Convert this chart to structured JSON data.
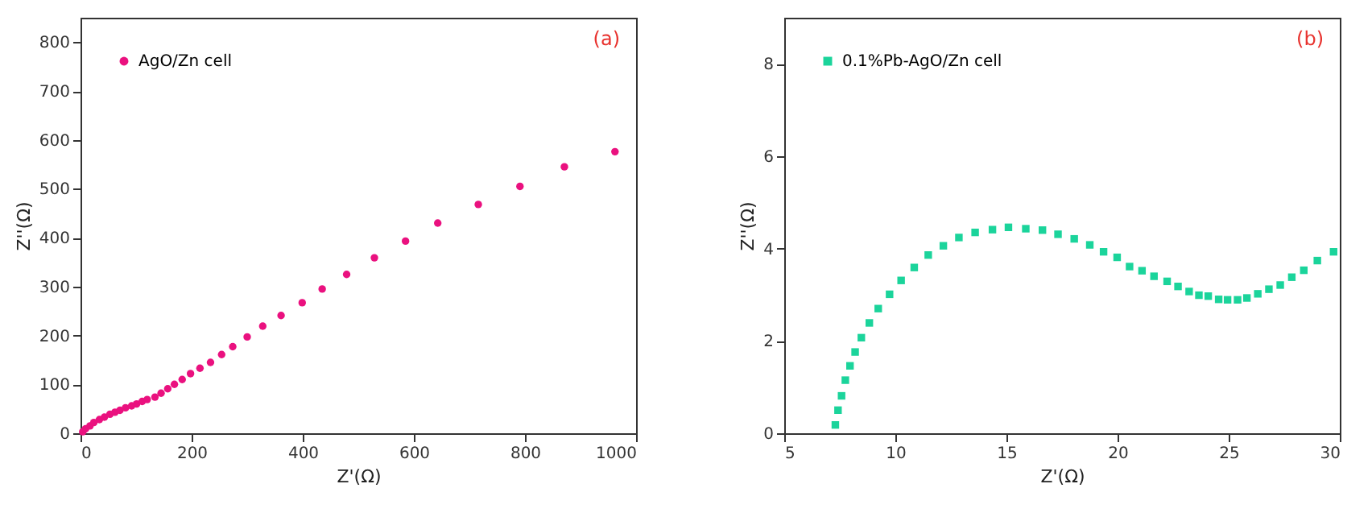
{
  "chart_data": [
    {
      "type": "scatter",
      "xlabel": "Z'(Ω)",
      "ylabel": "Z''(Ω)",
      "annotations": [
        "(a)"
      ],
      "legend": "top left",
      "marker": "circle",
      "grid": false,
      "xlim": [
        0,
        1000
      ],
      "xticks": [
        0,
        200,
        400,
        600,
        800,
        1000
      ],
      "ylim": [
        0,
        850
      ],
      "yticks": [
        0,
        100,
        200,
        300,
        400,
        500,
        600,
        700,
        800
      ],
      "series": [
        {
          "name": "AgO/Zn cell",
          "color": "#ea117f",
          "x": [
            4,
            9,
            17,
            24,
            34,
            43,
            53,
            62,
            71,
            81,
            92,
            101,
            111,
            120,
            134,
            145,
            157,
            169,
            183,
            198,
            215,
            234,
            254,
            274,
            300,
            328,
            361,
            399,
            435,
            479,
            529,
            585,
            643,
            716,
            791,
            871,
            962
          ],
          "values": [
            3,
            9,
            15,
            22,
            28,
            33,
            39,
            43,
            47,
            52,
            56,
            60,
            65,
            69,
            74,
            82,
            91,
            100,
            110,
            122,
            133,
            145,
            161,
            177,
            197,
            219,
            241,
            267,
            295,
            325,
            359,
            393,
            430,
            468,
            505,
            545,
            576
          ]
        }
      ]
    },
    {
      "type": "scatter",
      "xlabel": "Z'(Ω)",
      "ylabel": "Z''(Ω)",
      "annotations": [
        "(b)"
      ],
      "legend": "top left",
      "marker": "square",
      "grid": false,
      "xlim": [
        5,
        30
      ],
      "xticks": [
        5,
        10,
        15,
        20,
        25,
        30
      ],
      "ylim": [
        0,
        9
      ],
      "yticks": [
        0,
        2,
        4,
        6,
        8
      ],
      "series": [
        {
          "name": "0.1%Pb-AgO/Zn cell",
          "color": "#1bd49b",
          "x": [
            7.3,
            7.42,
            7.58,
            7.75,
            7.96,
            8.19,
            8.47,
            8.83,
            9.23,
            9.74,
            10.26,
            10.85,
            11.48,
            12.16,
            12.86,
            13.59,
            14.37,
            15.09,
            15.87,
            16.62,
            17.32,
            18.05,
            18.75,
            19.37,
            19.98,
            20.54,
            21.1,
            21.64,
            22.23,
            22.72,
            23.22,
            23.66,
            24.08,
            24.55,
            24.95,
            25.4,
            25.82,
            26.31,
            26.81,
            27.32,
            27.84,
            28.38,
            28.99,
            29.72
          ],
          "values": [
            0.18,
            0.5,
            0.81,
            1.15,
            1.46,
            1.76,
            2.07,
            2.39,
            2.7,
            3.01,
            3.31,
            3.59,
            3.86,
            4.06,
            4.24,
            4.35,
            4.41,
            4.46,
            4.43,
            4.4,
            4.31,
            4.21,
            4.08,
            3.93,
            3.81,
            3.61,
            3.52,
            3.4,
            3.29,
            3.18,
            3.07,
            2.99,
            2.97,
            2.9,
            2.89,
            2.89,
            2.93,
            3.02,
            3.12,
            3.21,
            3.38,
            3.53,
            3.74,
            3.93
          ]
        }
      ]
    }
  ]
}
